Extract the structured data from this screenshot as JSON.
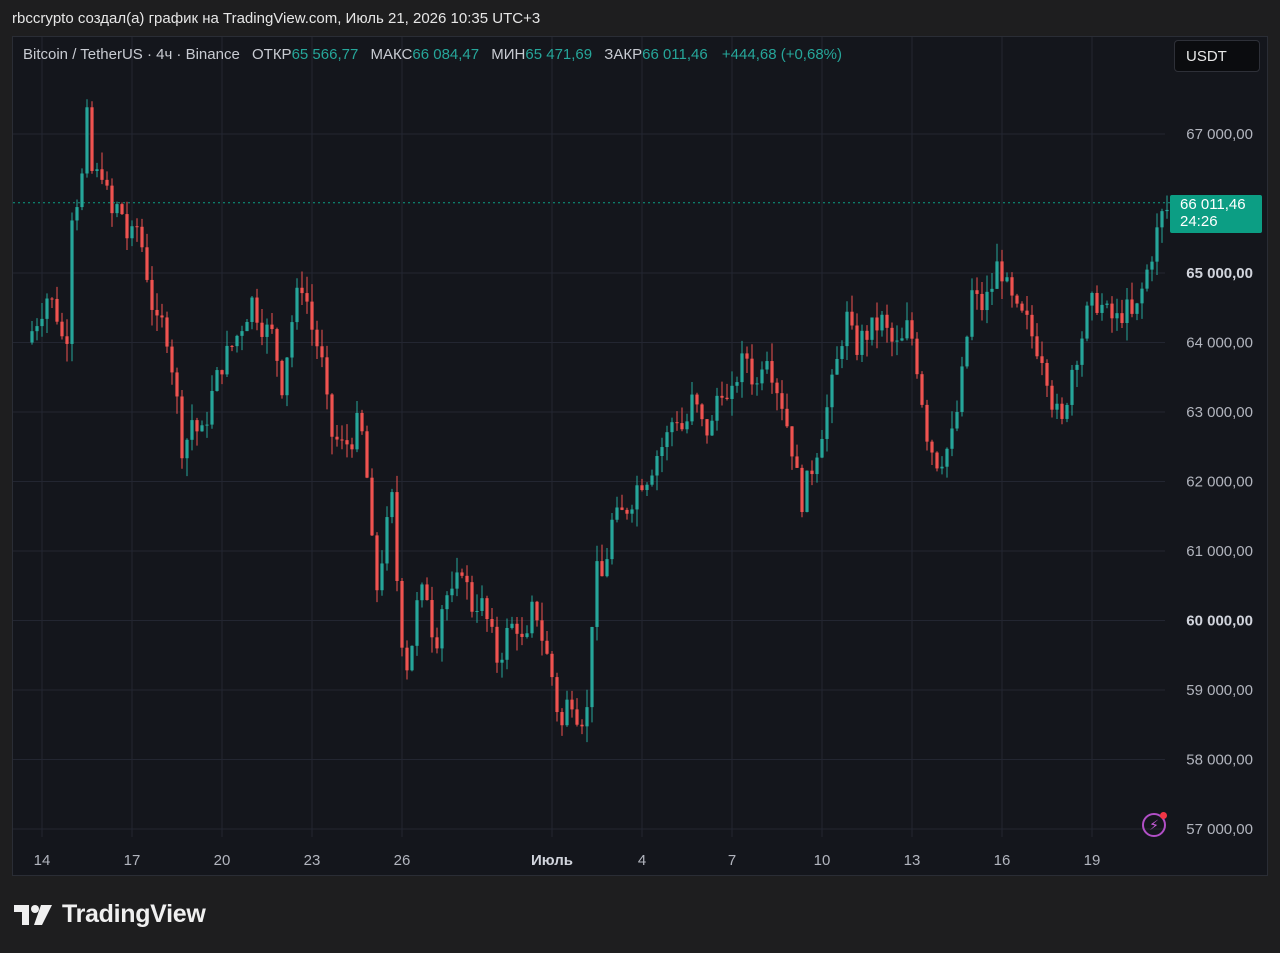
{
  "header": {
    "text": "rbccrypto создал(а) график на TradingView.com, Июль 21, 2026 10:35 UTC+3"
  },
  "legend": {
    "symbol": "Bitcoin / TetherUS · 4ч · Binance",
    "open_label": "ОТКР",
    "open_value": "65 566,77",
    "high_label": "МАКС",
    "high_value": "66 084,47",
    "low_label": "МИН",
    "low_value": "65 471,69",
    "close_label": "ЗАКР",
    "close_value": "66 011,46",
    "change": "+444,68 (+0,68%)"
  },
  "currency_button": "USDT",
  "price_tag": {
    "price": "66 011,46",
    "countdown": "24:26"
  },
  "brand": {
    "name": "TradingView",
    "logo": "tradingview-logo-icon"
  },
  "icons": {
    "alert": "lightning-icon"
  },
  "colors": {
    "up": "#26a69a",
    "down": "#ef5350",
    "background": "#14161c",
    "price_tag": "#0c9e84"
  },
  "chart_data": {
    "type": "candlestick",
    "symbol": "Bitcoin / TetherUS",
    "interval": "4ч",
    "exchange": "Binance",
    "currency": "USDT",
    "grid": true,
    "ylim": [
      56600,
      68200
    ],
    "y_tick_labels": [
      "67 000,00",
      "65 000,00",
      "64 000,00",
      "63 000,00",
      "62 000,00",
      "61 000,00",
      "60 000,00",
      "59 000,00",
      "58 000,00",
      "57 000,00"
    ],
    "y_tick_values": [
      67000,
      65000,
      64000,
      63000,
      62000,
      61000,
      60000,
      59000,
      58000,
      57000
    ],
    "bold_ticks": [
      65000,
      60000
    ],
    "x_tick_labels": [
      "14",
      "17",
      "20",
      "23",
      "26",
      "Июль",
      "4",
      "7",
      "10",
      "13",
      "16",
      "19"
    ],
    "x_tick_dates": [
      "2026-06-14",
      "2026-06-17",
      "2026-06-20",
      "2026-06-23",
      "2026-06-26",
      "2026-07-01",
      "2026-07-04",
      "2026-07-07",
      "2026-07-10",
      "2026-07-13",
      "2026-07-16",
      "2026-07-19"
    ],
    "last_price": 66011.46,
    "close_path": [
      [
        13.5,
        64000
      ],
      [
        14.2,
        64700
      ],
      [
        14.5,
        64400
      ],
      [
        14.8,
        63800
      ],
      [
        15.0,
        65900
      ],
      [
        15.3,
        66200
      ],
      [
        15.5,
        67200
      ],
      [
        15.7,
        66300
      ],
      [
        16.0,
        66500
      ],
      [
        16.3,
        65800
      ],
      [
        16.6,
        66000
      ],
      [
        16.9,
        65400
      ],
      [
        17.2,
        65700
      ],
      [
        17.5,
        65000
      ],
      [
        17.8,
        64200
      ],
      [
        18.1,
        64300
      ],
      [
        18.4,
        63500
      ],
      [
        18.7,
        62400
      ],
      [
        19.0,
        62900
      ],
      [
        19.3,
        62600
      ],
      [
        19.7,
        63300
      ],
      [
        20.0,
        63700
      ],
      [
        20.4,
        64000
      ],
      [
        20.7,
        64300
      ],
      [
        21.0,
        64600
      ],
      [
        21.4,
        64200
      ],
      [
        21.7,
        64100
      ],
      [
        22.0,
        63400
      ],
      [
        22.4,
        64500
      ],
      [
        22.7,
        64900
      ],
      [
        23.0,
        64200
      ],
      [
        23.3,
        63800
      ],
      [
        23.6,
        62700
      ],
      [
        24.0,
        62500
      ],
      [
        24.3,
        62600
      ],
      [
        24.6,
        62900
      ],
      [
        24.9,
        61800
      ],
      [
        25.1,
        60300
      ],
      [
        25.4,
        61100
      ],
      [
        25.7,
        61800
      ],
      [
        25.9,
        60000
      ],
      [
        26.2,
        59300
      ],
      [
        26.5,
        60200
      ],
      [
        26.8,
        60500
      ],
      [
        27.1,
        59600
      ],
      [
        27.4,
        60400
      ],
      [
        27.7,
        60300
      ],
      [
        28.0,
        60800
      ],
      [
        28.3,
        60200
      ],
      [
        28.6,
        60300
      ],
      [
        28.9,
        59900
      ],
      [
        29.2,
        59400
      ],
      [
        29.5,
        59800
      ],
      [
        29.8,
        60000
      ],
      [
        30.1,
        59500
      ],
      [
        30.4,
        60300
      ],
      [
        30.7,
        59700
      ],
      [
        31.0,
        59200
      ],
      [
        31.3,
        58400
      ],
      [
        31.6,
        59000
      ],
      [
        31.9,
        58600
      ],
      [
        32.2,
        58700
      ],
      [
        32.4,
        60700
      ],
      [
        32.7,
        60600
      ],
      [
        33.0,
        61400
      ],
      [
        33.3,
        61500
      ],
      [
        33.6,
        61700
      ],
      [
        33.9,
        62000
      ],
      [
        34.2,
        62100
      ],
      [
        34.5,
        62400
      ],
      [
        34.8,
        62600
      ],
      [
        35.1,
        63000
      ],
      [
        35.4,
        62700
      ],
      [
        35.7,
        63200
      ],
      [
        36.0,
        62800
      ],
      [
        36.3,
        62700
      ],
      [
        36.6,
        63500
      ],
      [
        36.9,
        63000
      ],
      [
        37.2,
        63600
      ],
      [
        37.5,
        63800
      ],
      [
        37.8,
        63300
      ],
      [
        38.1,
        64000
      ],
      [
        38.4,
        63500
      ],
      [
        38.7,
        63100
      ],
      [
        39.0,
        62500
      ],
      [
        39.3,
        61700
      ],
      [
        39.6,
        62100
      ],
      [
        39.9,
        62600
      ],
      [
        40.2,
        63100
      ],
      [
        40.5,
        63700
      ],
      [
        40.8,
        64400
      ],
      [
        41.1,
        63900
      ],
      [
        41.4,
        64100
      ],
      [
        41.7,
        64200
      ],
      [
        42.0,
        64300
      ],
      [
        42.3,
        64000
      ],
      [
        42.6,
        63900
      ],
      [
        42.9,
        64300
      ],
      [
        43.2,
        63600
      ],
      [
        43.5,
        62700
      ],
      [
        43.8,
        62300
      ],
      [
        44.1,
        62400
      ],
      [
        44.4,
        62700
      ],
      [
        44.7,
        63600
      ],
      [
        45.0,
        64700
      ],
      [
        45.3,
        64500
      ],
      [
        45.6,
        64700
      ],
      [
        45.9,
        65200
      ],
      [
        46.2,
        64700
      ],
      [
        46.5,
        64400
      ],
      [
        46.8,
        64300
      ],
      [
        47.1,
        64000
      ],
      [
        47.4,
        63800
      ],
      [
        47.7,
        63100
      ],
      [
        48.0,
        62800
      ],
      [
        48.3,
        63600
      ],
      [
        48.6,
        64000
      ],
      [
        48.9,
        64500
      ],
      [
        49.2,
        64600
      ],
      [
        49.5,
        64400
      ],
      [
        49.8,
        64300
      ],
      [
        50.1,
        64500
      ],
      [
        50.4,
        64300
      ],
      [
        50.7,
        64800
      ],
      [
        51.0,
        65300
      ],
      [
        51.3,
        65800
      ],
      [
        51.7,
        66011.46
      ]
    ]
  }
}
